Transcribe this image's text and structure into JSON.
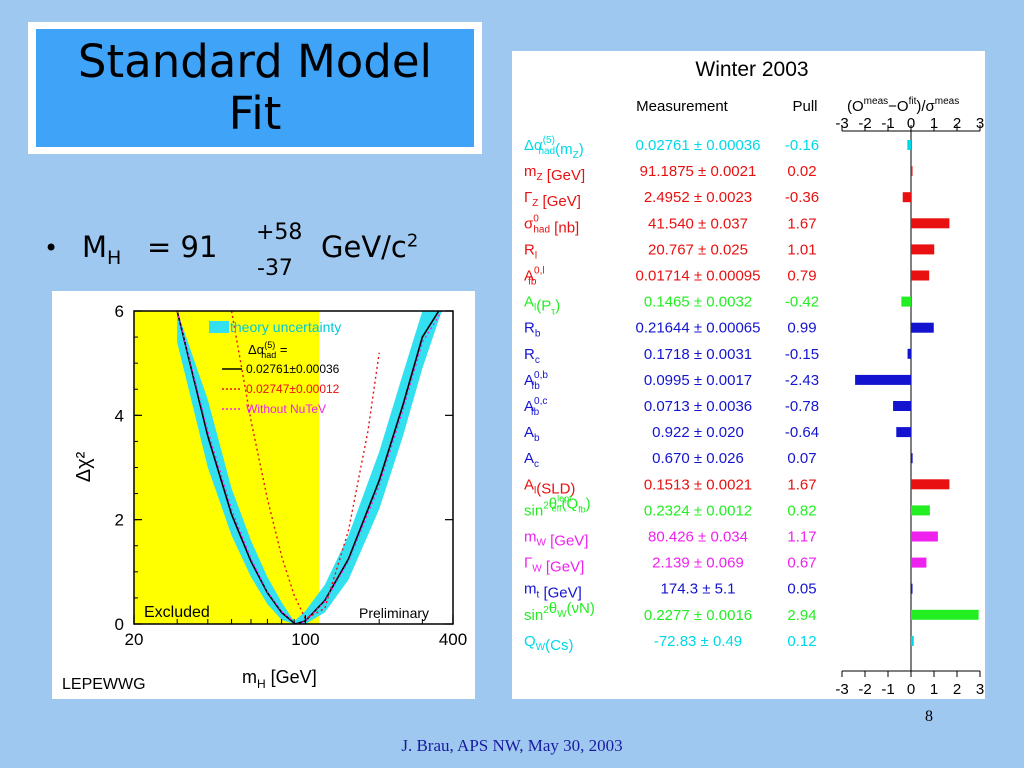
{
  "slide": {
    "title_line1": "Standard Model",
    "title_line2": "Fit",
    "bullet_symbol": "•",
    "bullet_mh": "M",
    "bullet_mh_sub": "H",
    "bullet_eq": "= 91",
    "bullet_plus": "+58",
    "bullet_minus": "-37",
    "bullet_unit": "GeV/c",
    "bullet_unit_sup": "2",
    "page_number": "8",
    "footer": "J. Brau, APS NW, May 30, 2003"
  },
  "colors": {
    "background": "#9ec8f0",
    "title_fill": "#3fa3f8",
    "band": "#33e0ef",
    "excluded": "#ffff00",
    "cyan": "#00d8e8",
    "red": "#e81010",
    "green": "#22ee22",
    "blue": "#1414d0",
    "magenta": "#ee22ee"
  },
  "chart_data": [
    {
      "type": "line",
      "xlabel_main": "m",
      "xlabel_sub": "H",
      "xlabel_unit": "[GeV]",
      "ylabel": "Δχ²",
      "x_scale": "log",
      "xlim": [
        20,
        400
      ],
      "ylim": [
        0,
        6
      ],
      "x_ticks": [
        "20",
        "100",
        "400"
      ],
      "y_ticks": [
        "0",
        "2",
        "4",
        "6"
      ],
      "excluded_range": [
        20,
        114
      ],
      "annotations": {
        "excluded": "Excluded",
        "preliminary": "Preliminary",
        "corner": "LEPEWWG"
      },
      "legend": {
        "band_label": "theory uncertainty",
        "alpha_label": "Δα",
        "alpha_sup": "(5)",
        "alpha_sub": "had",
        "alpha_eq": "=",
        "entries": [
          {
            "label": "0.02761±0.00036",
            "color": "#000000",
            "style": "solid"
          },
          {
            "label": "0.02747±0.00012",
            "color": "#e81010",
            "style": "dotted"
          },
          {
            "label": "Without NuTeV",
            "color": "#ee22ee",
            "style": "dotted"
          }
        ]
      },
      "series": [
        {
          "name": "0.02761±0.00036",
          "x": [
            30,
            40,
            50,
            60,
            70,
            80,
            91,
            100,
            120,
            150,
            200,
            250,
            300,
            350
          ],
          "y": [
            6.0,
            3.6,
            2.1,
            1.2,
            0.6,
            0.22,
            0.0,
            0.06,
            0.45,
            1.25,
            2.75,
            4.2,
            5.5,
            6.0
          ]
        },
        {
          "name": "0.02747±0.00012",
          "x": [
            50,
            60,
            70,
            80,
            90,
            100,
            120,
            150,
            180,
            200
          ],
          "y": [
            6.0,
            3.9,
            2.4,
            1.3,
            0.55,
            0.1,
            0.3,
            1.8,
            3.7,
            5.2
          ]
        },
        {
          "name": "Without NuTeV",
          "x": [
            30,
            40,
            50,
            60,
            70,
            80,
            92,
            100,
            120,
            150,
            200,
            250,
            300,
            360
          ],
          "y": [
            6.0,
            3.7,
            2.2,
            1.25,
            0.62,
            0.24,
            0.0,
            0.05,
            0.43,
            1.2,
            2.65,
            4.1,
            5.4,
            6.0
          ]
        }
      ],
      "band": {
        "x": [
          30,
          40,
          50,
          60,
          70,
          80,
          90,
          100,
          120,
          150,
          200,
          250,
          300,
          360
        ],
        "y_low": [
          5.4,
          3.0,
          1.7,
          0.9,
          0.38,
          0.08,
          0.0,
          0.0,
          0.22,
          0.85,
          2.2,
          3.6,
          4.9,
          6.0
        ],
        "y_high": [
          6.0,
          4.3,
          2.6,
          1.6,
          0.9,
          0.42,
          0.05,
          0.25,
          0.75,
          1.7,
          3.3,
          4.8,
          6.0,
          6.0
        ]
      }
    },
    {
      "type": "bar",
      "title": "Winter 2003",
      "col_measurement": "Measurement",
      "col_pull": "Pull",
      "col_pull_formula": "(O",
      "formula_meas_sup": "meas",
      "formula_minus": "−O",
      "formula_fit_sup": "fit",
      "formula_rest": ")/σ",
      "formula_meas_sup2": "meas",
      "x_ticks": [
        "-3",
        "-2",
        "-1",
        "0",
        "1",
        "2",
        "3"
      ],
      "xlim": [
        -3,
        3
      ],
      "rows": [
        {
          "label": "Δα",
          "sup": "(5)",
          "sub": "had",
          "suffix": "(m",
          "suffix_sub": "Z",
          "suffix_end": ")",
          "measurement": "0.02761 ± 0.00036",
          "pull": "-0.16",
          "value": -0.16,
          "color": "#00d8e8"
        },
        {
          "label": "m",
          "sup": "",
          "sub": "Z",
          "suffix": " [GeV]",
          "suffix_sub": "",
          "suffix_end": "",
          "measurement": "91.1875 ± 0.0021",
          "pull": "0.02",
          "value": 0.02,
          "color": "#e81010"
        },
        {
          "label": "Γ",
          "sup": "",
          "sub": "Z",
          "suffix": " [GeV]",
          "suffix_sub": "",
          "suffix_end": "",
          "measurement": "2.4952 ± 0.0023",
          "pull": "-0.36",
          "value": -0.36,
          "color": "#e81010"
        },
        {
          "label": "σ",
          "sup": "0",
          "sub": "had",
          "suffix": " [nb]",
          "suffix_sub": "",
          "suffix_end": "",
          "measurement": "41.540 ± 0.037",
          "pull": "1.67",
          "value": 1.67,
          "color": "#e81010"
        },
        {
          "label": "R",
          "sup": "",
          "sub": "l",
          "suffix": "",
          "suffix_sub": "",
          "suffix_end": "",
          "measurement": "20.767 ± 0.025",
          "pull": "1.01",
          "value": 1.01,
          "color": "#e81010"
        },
        {
          "label": "A",
          "sup": "0,l",
          "sub": "fb",
          "suffix": "",
          "suffix_sub": "",
          "suffix_end": "",
          "measurement": "0.01714 ± 0.00095",
          "pull": "0.79",
          "value": 0.79,
          "color": "#e81010"
        },
        {
          "label": "A",
          "sup": "",
          "sub": "l",
          "suffix": "(P",
          "suffix_sub": "τ",
          "suffix_end": ")",
          "measurement": "0.1465 ± 0.0032",
          "pull": "-0.42",
          "value": -0.42,
          "color": "#22ee22"
        },
        {
          "label": "R",
          "sup": "",
          "sub": "b",
          "suffix": "",
          "suffix_sub": "",
          "suffix_end": "",
          "measurement": "0.21644 ± 0.00065",
          "pull": "0.99",
          "value": 0.99,
          "color": "#1414d0"
        },
        {
          "label": "R",
          "sup": "",
          "sub": "c",
          "suffix": "",
          "suffix_sub": "",
          "suffix_end": "",
          "measurement": "0.1718 ± 0.0031",
          "pull": "-0.15",
          "value": -0.15,
          "color": "#1414d0"
        },
        {
          "label": "A",
          "sup": "0,b",
          "sub": "fb",
          "suffix": "",
          "suffix_sub": "",
          "suffix_end": "",
          "measurement": "0.0995 ± 0.0017",
          "pull": "-2.43",
          "value": -2.43,
          "color": "#1414d0"
        },
        {
          "label": "A",
          "sup": "0,c",
          "sub": "fb",
          "suffix": "",
          "suffix_sub": "",
          "suffix_end": "",
          "measurement": "0.0713 ± 0.0036",
          "pull": "-0.78",
          "value": -0.78,
          "color": "#1414d0"
        },
        {
          "label": "A",
          "sup": "",
          "sub": "b",
          "suffix": "",
          "suffix_sub": "",
          "suffix_end": "",
          "measurement": "0.922 ± 0.020",
          "pull": "-0.64",
          "value": -0.64,
          "color": "#1414d0"
        },
        {
          "label": "A",
          "sup": "",
          "sub": "c",
          "suffix": "",
          "suffix_sub": "",
          "suffix_end": "",
          "measurement": "0.670 ± 0.026",
          "pull": "0.07",
          "value": 0.07,
          "color": "#1414d0"
        },
        {
          "label": "A",
          "sup": "",
          "sub": "l",
          "suffix": "(SLD)",
          "suffix_sub": "",
          "suffix_end": "",
          "measurement": "0.1513 ± 0.0021",
          "pull": "1.67",
          "value": 1.67,
          "color": "#e81010"
        },
        {
          "label": "sin",
          "sup": "2",
          "sub": "",
          "suffix": "θ",
          "suffix_sup": "lept",
          "suffix_sub": "eff",
          "suffix_end": "(Q",
          "suffix_end_sub": "fb",
          "suffix_tail": ")",
          "measurement": "0.2324 ± 0.0012",
          "pull": "0.82",
          "value": 0.82,
          "color": "#22ee22"
        },
        {
          "label": "m",
          "sup": "",
          "sub": "W",
          "suffix": " [GeV]",
          "suffix_sub": "",
          "suffix_end": "",
          "measurement": "80.426 ± 0.034",
          "pull": "1.17",
          "value": 1.17,
          "color": "#ee22ee"
        },
        {
          "label": "Γ",
          "sup": "",
          "sub": "W",
          "suffix": " [GeV]",
          "suffix_sub": "",
          "suffix_end": "",
          "measurement": "2.139 ± 0.069",
          "pull": "0.67",
          "value": 0.67,
          "color": "#ee22ee"
        },
        {
          "label": "m",
          "sup": "",
          "sub": "t",
          "suffix": " [GeV]",
          "suffix_sub": "",
          "suffix_end": "",
          "measurement": "174.3 ± 5.1",
          "pull": "0.05",
          "value": 0.05,
          "color": "#1414d0"
        },
        {
          "label": "sin",
          "sup": "2",
          "sub": "",
          "suffix": "θ",
          "suffix_sub": "W",
          "suffix_end": "(νN)",
          "measurement": "0.2277 ± 0.0016",
          "pull": "2.94",
          "value": 2.94,
          "color": "#22ee22"
        },
        {
          "label": "Q",
          "sup": "",
          "sub": "W",
          "suffix": "(Cs)",
          "suffix_sub": "",
          "suffix_end": "",
          "measurement": "-72.83 ± 0.49",
          "pull": "0.12",
          "value": 0.12,
          "color": "#00d8e8"
        }
      ]
    }
  ]
}
